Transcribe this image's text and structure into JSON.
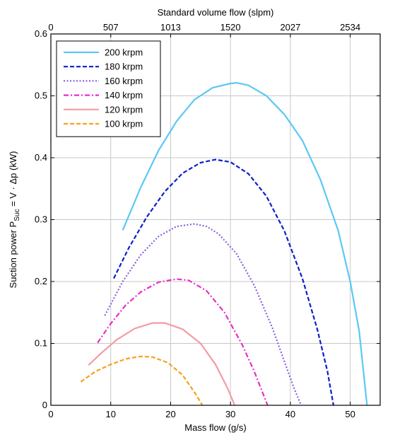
{
  "chart_data": {
    "type": "line",
    "xlabel": "Mass flow (g/s)",
    "x2label": "Standard volume flow (slpm)",
    "ylabel": {
      "pre": "Suction power P",
      "sub": "Suc",
      "post": " = V · Δp (kW)"
    },
    "xlim": [
      0,
      55
    ],
    "ylim": [
      0,
      0.6
    ],
    "x_ticks": [
      "0",
      "10",
      "20",
      "30",
      "40",
      "50"
    ],
    "x_tick_values": [
      0,
      10,
      20,
      30,
      40,
      50
    ],
    "x2_ticks": [
      "0",
      "507",
      "1013",
      "1520",
      "2027",
      "2534"
    ],
    "x2_tick_values": [
      0,
      10,
      20,
      30,
      40,
      50
    ],
    "y_ticks": [
      "0",
      "0.1",
      "0.2",
      "0.3",
      "0.4",
      "0.5",
      "0.6"
    ],
    "y_tick_values": [
      0,
      0.1,
      0.2,
      0.3,
      0.4,
      0.5,
      0.6
    ],
    "grid": true,
    "legend_position": "top-left",
    "series": [
      {
        "name": "200 krpm",
        "color": "#5bc8f5",
        "dash": "solid",
        "width": 2.2,
        "x": [
          12,
          15,
          18,
          21,
          24,
          27,
          30,
          31,
          33,
          36,
          39,
          42,
          45,
          48,
          50,
          51.5,
          52.8
        ],
        "y": [
          0.283,
          0.352,
          0.412,
          0.459,
          0.494,
          0.513,
          0.52,
          0.521,
          0.517,
          0.5,
          0.47,
          0.428,
          0.365,
          0.282,
          0.2,
          0.12,
          0.0
        ]
      },
      {
        "name": "180 krpm",
        "color": "#0d1ec9",
        "dash": "6,3",
        "width": 2.2,
        "x": [
          10.5,
          13,
          16,
          19,
          22,
          25,
          27.5,
          30,
          33,
          36,
          39,
          42,
          44.5,
          46.2,
          47.2
        ],
        "y": [
          0.205,
          0.254,
          0.304,
          0.345,
          0.375,
          0.392,
          0.397,
          0.393,
          0.374,
          0.338,
          0.282,
          0.205,
          0.123,
          0.055,
          0.0
        ]
      },
      {
        "name": "160 krpm",
        "color": "#8a5fe0",
        "dash": "2,2.5",
        "width": 2.2,
        "x": [
          9,
          12,
          15,
          18,
          21,
          24,
          26,
          28,
          31,
          34,
          37,
          39,
          40.6,
          41.8
        ],
        "y": [
          0.145,
          0.2,
          0.243,
          0.273,
          0.289,
          0.293,
          0.289,
          0.277,
          0.245,
          0.193,
          0.125,
          0.071,
          0.028,
          0.0
        ]
      },
      {
        "name": "140 krpm",
        "color": "#e82fc8",
        "dash": "7,3,2,3",
        "width": 2.2,
        "x": [
          7.8,
          10,
          12.5,
          15,
          18,
          21,
          23,
          26,
          29,
          32,
          34,
          35.3,
          36.2
        ],
        "y": [
          0.101,
          0.132,
          0.162,
          0.183,
          0.199,
          0.204,
          0.202,
          0.185,
          0.15,
          0.097,
          0.054,
          0.022,
          0.0
        ]
      },
      {
        "name": "120 krpm",
        "color": "#f39ba3",
        "dash": "solid",
        "width": 2.2,
        "x": [
          6.3,
          8.5,
          11,
          14,
          17,
          19,
          22,
          25,
          27.5,
          29.5,
          30.7
        ],
        "y": [
          0.065,
          0.085,
          0.106,
          0.124,
          0.133,
          0.133,
          0.123,
          0.1,
          0.066,
          0.028,
          0.0
        ]
      },
      {
        "name": "100 krpm",
        "color": "#f5a21c",
        "dash": "6,3",
        "width": 2.2,
        "x": [
          5,
          7.5,
          10,
          12.5,
          15,
          17,
          19.5,
          22,
          24.2,
          25.3
        ],
        "y": [
          0.038,
          0.055,
          0.066,
          0.075,
          0.079,
          0.078,
          0.069,
          0.049,
          0.018,
          0.0
        ]
      }
    ]
  }
}
